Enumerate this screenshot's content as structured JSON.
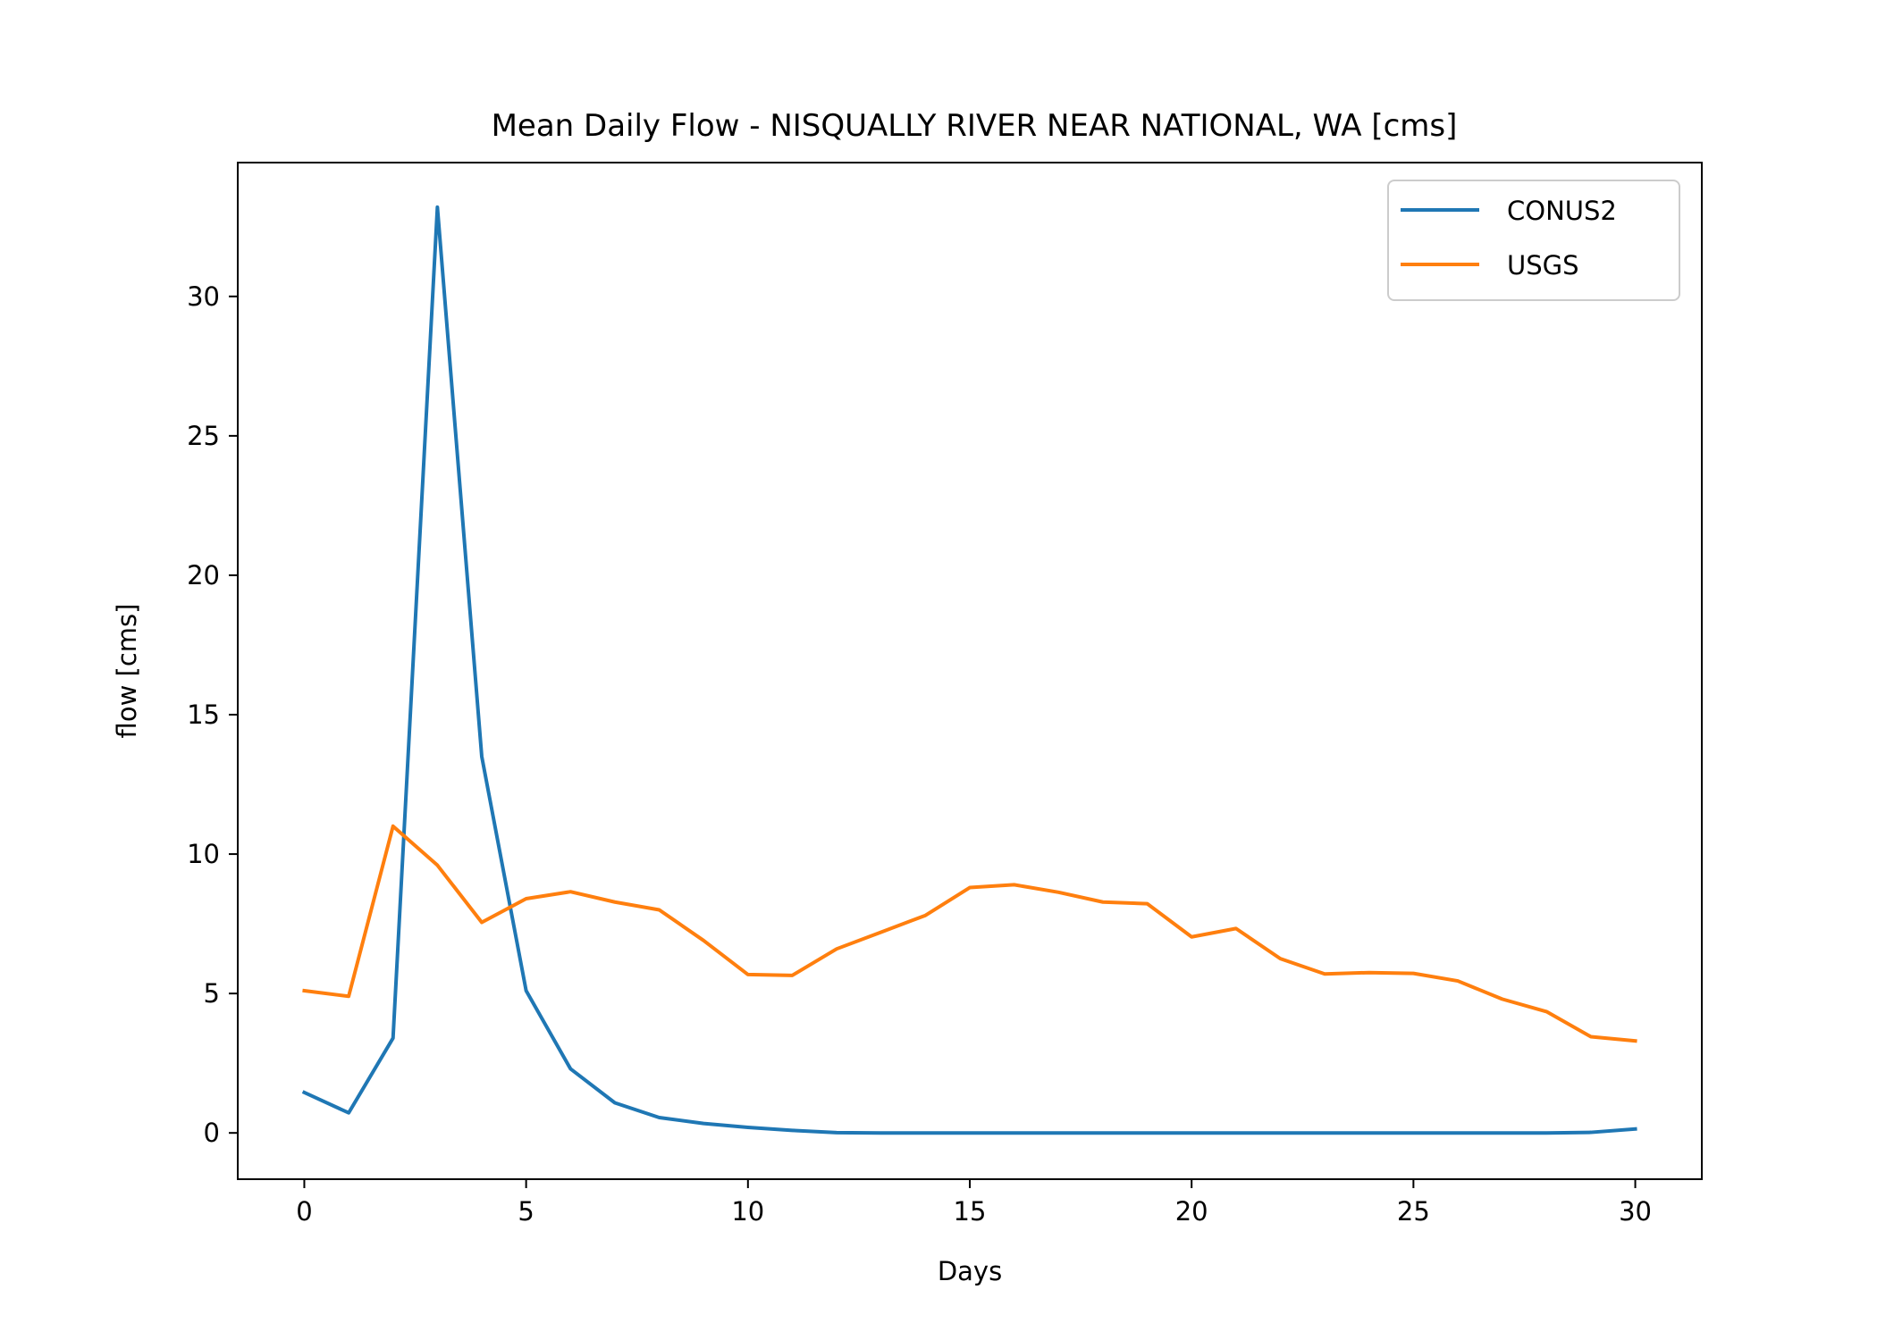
{
  "chart_data": {
    "type": "line",
    "title": "Mean Daily Flow - NISQUALLY RIVER NEAR NATIONAL, WA [cms]",
    "xlabel": "Days",
    "ylabel": "flow [cms]",
    "xlim": [
      -1.5,
      31.5
    ],
    "ylim": [
      -1.66,
      34.8
    ],
    "xticks": [
      0,
      5,
      10,
      15,
      20,
      25,
      30
    ],
    "yticks": [
      0,
      5,
      10,
      15,
      20,
      25,
      30
    ],
    "grid": false,
    "legend_position": "upper-right",
    "x": [
      0,
      1,
      2,
      3,
      4,
      5,
      6,
      7,
      8,
      9,
      10,
      11,
      12,
      13,
      14,
      15,
      16,
      17,
      18,
      19,
      20,
      21,
      22,
      23,
      24,
      25,
      26,
      27,
      28,
      29,
      30
    ],
    "series": [
      {
        "name": "CONUS2",
        "color": "#1f77b4",
        "values": [
          1.45,
          0.72,
          3.4,
          33.2,
          13.5,
          5.1,
          2.3,
          1.08,
          0.55,
          0.34,
          0.2,
          0.09,
          0.01,
          0.0,
          0.0,
          0.0,
          0.0,
          0.0,
          0.0,
          0.0,
          0.0,
          0.0,
          0.0,
          0.0,
          0.0,
          0.0,
          0.0,
          0.0,
          0.0,
          0.02,
          0.14
        ]
      },
      {
        "name": "USGS",
        "color": "#ff7f0e",
        "values": [
          5.1,
          4.9,
          11.0,
          9.6,
          7.55,
          8.4,
          8.65,
          8.28,
          8.0,
          6.9,
          5.68,
          5.65,
          6.6,
          7.2,
          7.8,
          8.8,
          8.9,
          8.63,
          8.28,
          8.22,
          7.03,
          7.33,
          6.25,
          5.7,
          5.75,
          5.72,
          5.45,
          4.8,
          4.35,
          3.45,
          3.3
        ]
      }
    ]
  }
}
